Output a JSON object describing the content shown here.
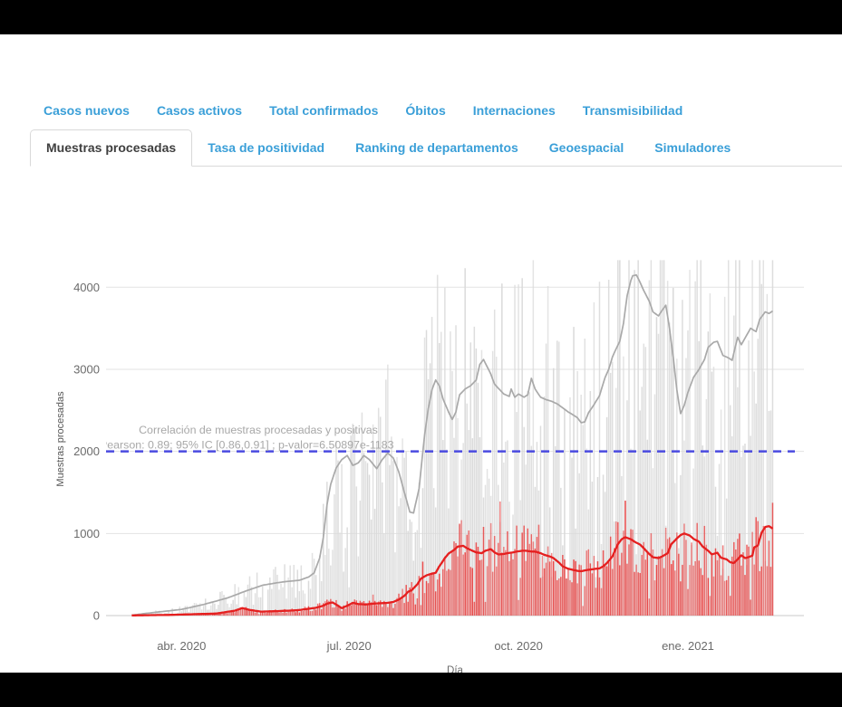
{
  "colors": {
    "tab_link": "#3a9fd8",
    "tab_active_text": "#3f3f3f",
    "tab_border": "#d9d9d9",
    "grid": "#e3e3e3",
    "axis_line": "#c9c9c9",
    "tick_text": "#6b6b6b",
    "annotation_text": "#a8a8a8",
    "bar_procesadas": "#d9d9d9",
    "line_procesadas": "#a9a9a9",
    "bar_positivas": "#e64343",
    "line_positivas": "#e51f1f",
    "threshold": "#4a4ae0"
  },
  "tabs_row1": [
    "Casos nuevos",
    "Casos activos",
    "Total confirmados",
    "Óbitos",
    "Internaciones",
    "Transmisibilidad"
  ],
  "tabs_row2": [
    "Muestras procesadas",
    "Tasa de positividad",
    "Ranking de departamentos",
    "Geoespacial",
    "Simuladores"
  ],
  "active_tab": "Muestras procesadas",
  "chart_data": {
    "type": "bar",
    "xlabel": "Día",
    "ylabel": "Muestras procesadas",
    "ylim": [
      0,
      4400
    ],
    "yticks": [
      0,
      1000,
      2000,
      3000,
      4000
    ],
    "xticks": [
      {
        "day": 27,
        "label": "abr. 2020"
      },
      {
        "day": 118,
        "label": "jul. 2020"
      },
      {
        "day": 210,
        "label": "oct. 2020"
      },
      {
        "day": 302,
        "label": "ene. 2021"
      }
    ],
    "x_range_days": [
      -14,
      365
    ],
    "data_days": [
      0,
      348
    ],
    "threshold": {
      "value": 2000,
      "style": "dashed"
    },
    "annotation": {
      "line1": "Correlación de muestras procesadas y positivas",
      "line2": "Pearson: 0.89; 95% IC [0.86,0.91] ; p-valor=6.50897e-1183"
    },
    "series": [
      {
        "name": "muestras-procesadas-media-movil",
        "type": "line",
        "points": [
          [
            0,
            5
          ],
          [
            7,
            25
          ],
          [
            15,
            45
          ],
          [
            27,
            75
          ],
          [
            39,
            135
          ],
          [
            52,
            215
          ],
          [
            62,
            300
          ],
          [
            71,
            370
          ],
          [
            79,
            400
          ],
          [
            84,
            415
          ],
          [
            91,
            430
          ],
          [
            96,
            470
          ],
          [
            99,
            520
          ],
          [
            102,
            700
          ],
          [
            104,
            950
          ],
          [
            106,
            1350
          ],
          [
            108,
            1600
          ],
          [
            111,
            1800
          ],
          [
            114,
            1900
          ],
          [
            117,
            1950
          ],
          [
            120,
            1830
          ],
          [
            123,
            1860
          ],
          [
            126,
            1950
          ],
          [
            129,
            1900
          ],
          [
            133,
            1790
          ],
          [
            136,
            1900
          ],
          [
            139,
            1980
          ],
          [
            142,
            1920
          ],
          [
            145,
            1750
          ],
          [
            148,
            1500
          ],
          [
            151,
            1260
          ],
          [
            153,
            1250
          ],
          [
            156,
            1550
          ],
          [
            159,
            2200
          ],
          [
            161,
            2520
          ],
          [
            163,
            2750
          ],
          [
            165,
            2870
          ],
          [
            167,
            2800
          ],
          [
            169,
            2640
          ],
          [
            172,
            2480
          ],
          [
            174,
            2390
          ],
          [
            176,
            2480
          ],
          [
            178,
            2690
          ],
          [
            181,
            2760
          ],
          [
            184,
            2800
          ],
          [
            187,
            2870
          ],
          [
            189,
            3060
          ],
          [
            191,
            3120
          ],
          [
            193,
            3030
          ],
          [
            195,
            2940
          ],
          [
            197,
            2820
          ],
          [
            199,
            2770
          ],
          [
            202,
            2700
          ],
          [
            205,
            2670
          ],
          [
            206,
            2760
          ],
          [
            208,
            2660
          ],
          [
            210,
            2700
          ],
          [
            213,
            2660
          ],
          [
            215,
            2690
          ],
          [
            217,
            2890
          ],
          [
            219,
            2760
          ],
          [
            222,
            2660
          ],
          [
            225,
            2630
          ],
          [
            228,
            2610
          ],
          [
            231,
            2580
          ],
          [
            234,
            2530
          ],
          [
            237,
            2480
          ],
          [
            240,
            2440
          ],
          [
            242,
            2410
          ],
          [
            244,
            2350
          ],
          [
            246,
            2360
          ],
          [
            248,
            2470
          ],
          [
            251,
            2570
          ],
          [
            254,
            2680
          ],
          [
            257,
            2900
          ],
          [
            259,
            3000
          ],
          [
            261,
            3150
          ],
          [
            263,
            3250
          ],
          [
            265,
            3340
          ],
          [
            267,
            3560
          ],
          [
            269,
            3900
          ],
          [
            271,
            4080
          ],
          [
            272,
            4140
          ],
          [
            274,
            4150
          ],
          [
            276,
            4060
          ],
          [
            278,
            3960
          ],
          [
            281,
            3830
          ],
          [
            283,
            3700
          ],
          [
            286,
            3650
          ],
          [
            288,
            3720
          ],
          [
            290,
            3780
          ],
          [
            292,
            3500
          ],
          [
            294,
            3150
          ],
          [
            296,
            2750
          ],
          [
            298,
            2460
          ],
          [
            300,
            2560
          ],
          [
            302,
            2720
          ],
          [
            305,
            2900
          ],
          [
            308,
            3000
          ],
          [
            311,
            3120
          ],
          [
            313,
            3270
          ],
          [
            316,
            3330
          ],
          [
            318,
            3340
          ],
          [
            321,
            3170
          ],
          [
            324,
            3140
          ],
          [
            326,
            3110
          ],
          [
            329,
            3390
          ],
          [
            331,
            3300
          ],
          [
            334,
            3420
          ],
          [
            336,
            3500
          ],
          [
            339,
            3460
          ],
          [
            341,
            3610
          ],
          [
            344,
            3700
          ],
          [
            346,
            3680
          ],
          [
            348,
            3710
          ]
        ]
      },
      {
        "name": "muestras-positivas-media-movil",
        "type": "line",
        "points": [
          [
            0,
            2
          ],
          [
            20,
            8
          ],
          [
            46,
            25
          ],
          [
            56,
            60
          ],
          [
            60,
            92
          ],
          [
            64,
            70
          ],
          [
            70,
            48
          ],
          [
            80,
            55
          ],
          [
            90,
            65
          ],
          [
            100,
            95
          ],
          [
            104,
            120
          ],
          [
            106,
            145
          ],
          [
            109,
            160
          ],
          [
            112,
            120
          ],
          [
            114,
            90
          ],
          [
            117,
            120
          ],
          [
            120,
            155
          ],
          [
            123,
            140
          ],
          [
            127,
            135
          ],
          [
            131,
            145
          ],
          [
            135,
            150
          ],
          [
            139,
            155
          ],
          [
            142,
            165
          ],
          [
            145,
            195
          ],
          [
            148,
            240
          ],
          [
            150,
            290
          ],
          [
            152,
            310
          ],
          [
            155,
            380
          ],
          [
            157,
            450
          ],
          [
            160,
            490
          ],
          [
            162,
            505
          ],
          [
            165,
            520
          ],
          [
            167,
            600
          ],
          [
            170,
            700
          ],
          [
            172,
            755
          ],
          [
            175,
            800
          ],
          [
            177,
            840
          ],
          [
            180,
            850
          ],
          [
            182,
            820
          ],
          [
            185,
            790
          ],
          [
            187,
            770
          ],
          [
            190,
            760
          ],
          [
            192,
            790
          ],
          [
            195,
            810
          ],
          [
            197,
            770
          ],
          [
            199,
            745
          ],
          [
            202,
            750
          ],
          [
            204,
            760
          ],
          [
            207,
            770
          ],
          [
            209,
            780
          ],
          [
            212,
            790
          ],
          [
            214,
            790
          ],
          [
            217,
            780
          ],
          [
            219,
            780
          ],
          [
            222,
            760
          ],
          [
            224,
            740
          ],
          [
            227,
            720
          ],
          [
            229,
            700
          ],
          [
            232,
            645
          ],
          [
            234,
            600
          ],
          [
            237,
            570
          ],
          [
            239,
            560
          ],
          [
            242,
            545
          ],
          [
            244,
            540
          ],
          [
            247,
            555
          ],
          [
            249,
            560
          ],
          [
            252,
            570
          ],
          [
            254,
            575
          ],
          [
            256,
            600
          ],
          [
            258,
            640
          ],
          [
            261,
            720
          ],
          [
            264,
            870
          ],
          [
            266,
            930
          ],
          [
            268,
            955
          ],
          [
            271,
            930
          ],
          [
            273,
            900
          ],
          [
            276,
            865
          ],
          [
            278,
            820
          ],
          [
            281,
            750
          ],
          [
            283,
            710
          ],
          [
            286,
            700
          ],
          [
            288,
            720
          ],
          [
            291,
            760
          ],
          [
            293,
            870
          ],
          [
            296,
            940
          ],
          [
            298,
            980
          ],
          [
            300,
            1000
          ],
          [
            303,
            975
          ],
          [
            305,
            935
          ],
          [
            308,
            900
          ],
          [
            310,
            840
          ],
          [
            313,
            790
          ],
          [
            315,
            745
          ],
          [
            318,
            765
          ],
          [
            320,
            705
          ],
          [
            323,
            685
          ],
          [
            325,
            650
          ],
          [
            327,
            640
          ],
          [
            329,
            685
          ],
          [
            331,
            735
          ],
          [
            333,
            700
          ],
          [
            334,
            705
          ],
          [
            337,
            730
          ],
          [
            338,
            830
          ],
          [
            340,
            855
          ],
          [
            342,
            1010
          ],
          [
            344,
            1080
          ],
          [
            346,
            1090
          ],
          [
            348,
            1060
          ]
        ]
      },
      {
        "name": "muestras-procesadas-diarias",
        "type": "bars",
        "derived_from": "muestras-procesadas-media-movil"
      },
      {
        "name": "muestras-positivas-diarias",
        "type": "bars",
        "derived_from": "muestras-positivas-media-movil"
      }
    ],
    "bar_noise": {
      "seed": 13,
      "amplitude": 0.55,
      "weekly_dip": 0.6,
      "spike_factor": 1.3,
      "max_procesadas": 4330,
      "max_positivas": 1400
    }
  }
}
